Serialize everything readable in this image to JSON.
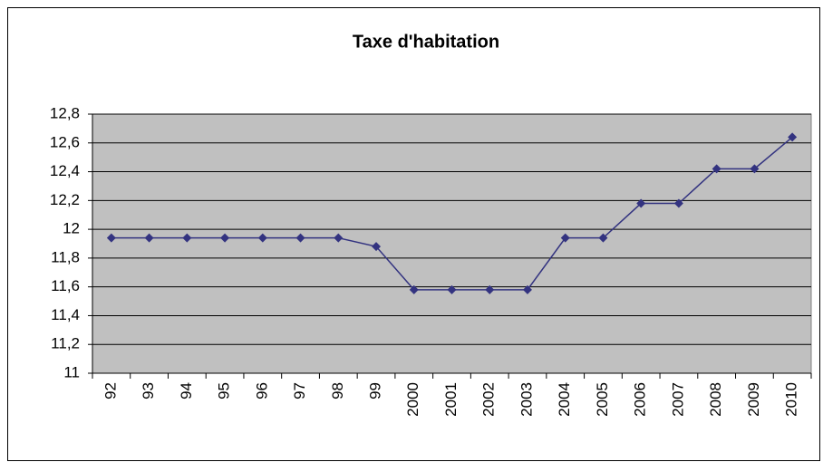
{
  "chart_data": {
    "type": "line",
    "title": "Taxe d'habitation",
    "categories": [
      "92",
      "93",
      "94",
      "95",
      "96",
      "97",
      "98",
      "99",
      "2000",
      "2001",
      "2002",
      "2003",
      "2004",
      "2005",
      "2006",
      "2007",
      "2008",
      "2009",
      "2010"
    ],
    "series": [
      {
        "name": null,
        "color": "#333380",
        "values": [
          11.94,
          11.94,
          11.94,
          11.94,
          11.94,
          11.94,
          11.94,
          11.88,
          11.58,
          11.58,
          11.58,
          11.58,
          11.94,
          11.94,
          12.18,
          12.18,
          12.42,
          12.42,
          12.64
        ]
      }
    ],
    "ylim": [
      11,
      12.8
    ],
    "yticks": [
      11,
      {
        "value": 11.2,
        "label": "11,2"
      },
      {
        "value": 11.4,
        "label": "11,4"
      },
      {
        "value": 11.6,
        "label": "11,6"
      },
      {
        "value": 11.8,
        "label": "11,8"
      },
      12,
      {
        "value": 12.2,
        "label": "12,2"
      },
      {
        "value": 12.4,
        "label": "12,4"
      },
      {
        "value": 12.6,
        "label": "12,6"
      },
      {
        "value": 12.8,
        "label": "12,8"
      }
    ],
    "grid": true,
    "plot_background": "#c0c0c0"
  }
}
